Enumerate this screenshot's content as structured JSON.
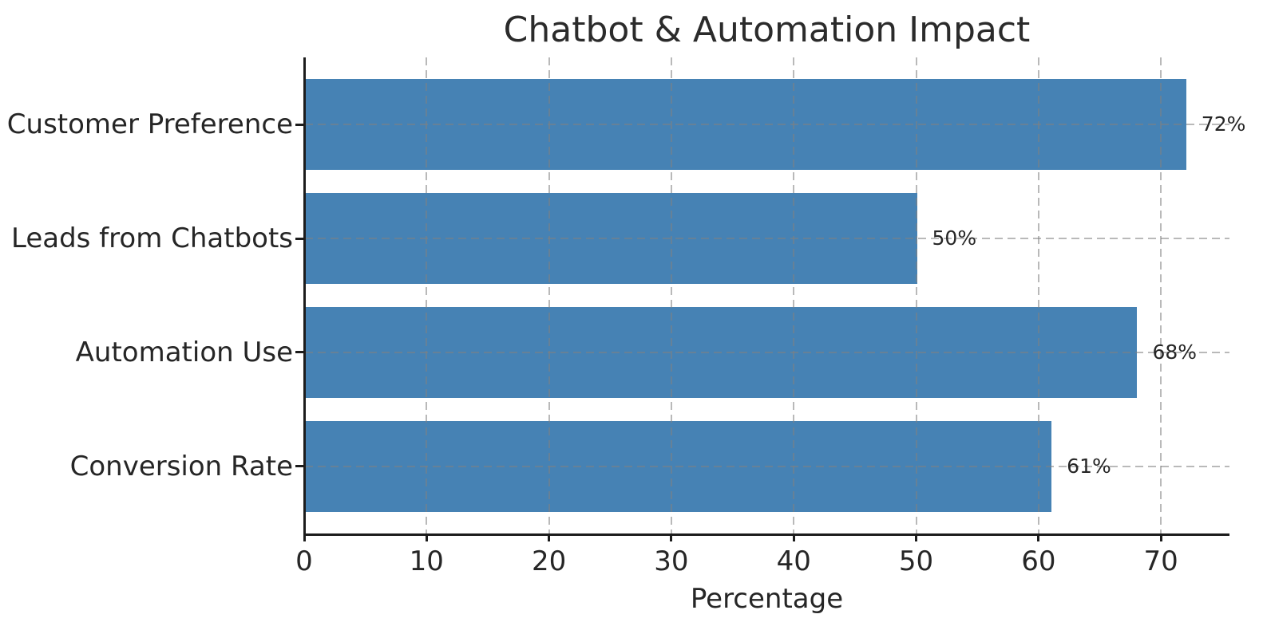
{
  "chart_data": {
    "type": "bar",
    "orientation": "horizontal",
    "title": "Chatbot & Automation Impact",
    "categories": [
      "Customer Preference",
      "Leads from Chatbots",
      "Automation Use",
      "Conversion Rate"
    ],
    "values": [
      72,
      50,
      68,
      61
    ],
    "value_labels": [
      "72%",
      "50%",
      "68%",
      "61%"
    ],
    "xlabel": "Percentage",
    "ylabel": "",
    "x_ticks": [
      0,
      10,
      20,
      30,
      40,
      50,
      60,
      70
    ],
    "xlim": [
      0,
      75.6
    ],
    "bar_height_fraction": 0.8,
    "grid": "dashed-both-axes-over-bars",
    "legend": "none",
    "colors": {
      "bar": "#4682B4",
      "grid": "#808080",
      "axis": "#1c1c1c",
      "text": "#262626",
      "background": "#ffffff"
    }
  }
}
